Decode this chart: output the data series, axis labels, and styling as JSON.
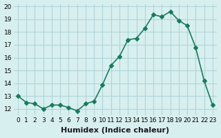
{
  "x": [
    0,
    1,
    2,
    3,
    4,
    5,
    6,
    7,
    8,
    9,
    10,
    11,
    12,
    13,
    14,
    15,
    16,
    17,
    18,
    19,
    20,
    21,
    22,
    23
  ],
  "y": [
    13.0,
    12.5,
    12.4,
    12.0,
    12.3,
    12.3,
    12.1,
    11.85,
    12.4,
    12.6,
    13.9,
    15.4,
    16.1,
    17.4,
    17.5,
    18.3,
    19.35,
    19.2,
    19.6,
    18.9,
    18.5,
    16.8,
    14.2,
    12.3
  ],
  "line_color": "#1a7a5e",
  "marker": "D",
  "marker_size": 3,
  "bg_color": "#d8eff0",
  "grid_color": "#b0d4d8",
  "xlabel": "Humidex (Indice chaleur)",
  "xlim": [
    -0.5,
    23.5
  ],
  "ylim": [
    11.5,
    20.2
  ],
  "yticks": [
    12,
    13,
    14,
    15,
    16,
    17,
    18,
    19,
    20
  ],
  "xticks": [
    0,
    1,
    2,
    3,
    4,
    5,
    6,
    7,
    8,
    9,
    10,
    11,
    12,
    13,
    14,
    15,
    16,
    17,
    18,
    19,
    20,
    21,
    22,
    23
  ],
  "tick_fontsize": 6.5,
  "xlabel_fontsize": 8,
  "line_width": 1.2
}
